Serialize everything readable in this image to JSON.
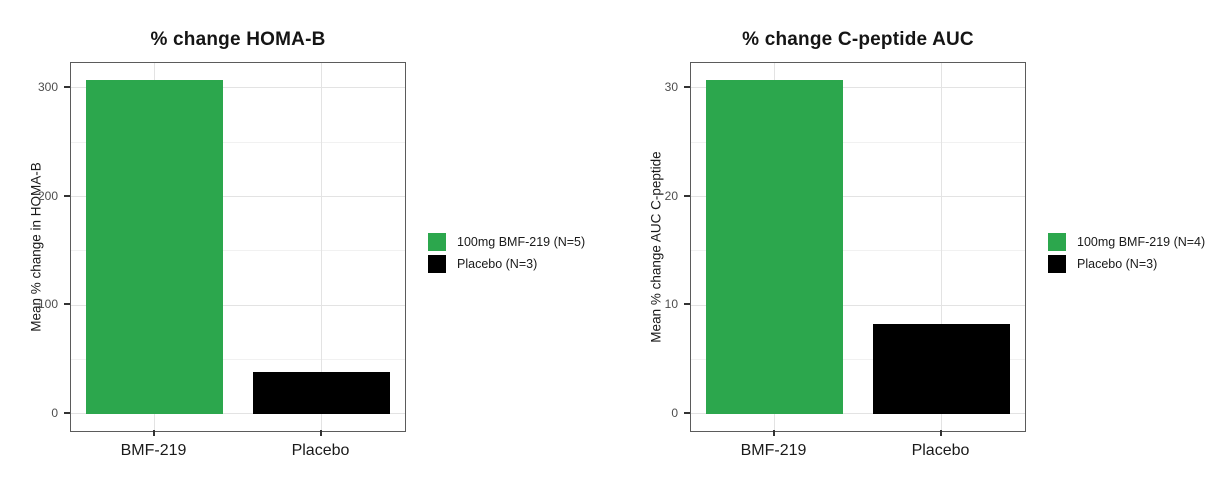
{
  "chart_data": [
    {
      "type": "bar",
      "title": "% change HOMA-B",
      "xlabel": "",
      "ylabel": "Mean % change in HOMA-B",
      "categories": [
        "BMF-219",
        "Placebo"
      ],
      "values": [
        307,
        38
      ],
      "bar_colors": [
        "#2ca74d",
        "#000000"
      ],
      "yticks": [
        0,
        100,
        200,
        300
      ],
      "ylim": [
        -16,
        323
      ],
      "grid": "on",
      "legend_position": "right",
      "legend": [
        {
          "label": "100mg BMF-219 (N=5)",
          "color": "#2ca74d"
        },
        {
          "label": "Placebo (N=3)",
          "color": "#000000"
        }
      ]
    },
    {
      "type": "bar",
      "title": "% change C-peptide AUC",
      "xlabel": "",
      "ylabel": "Mean % change AUC C-peptide",
      "categories": [
        "BMF-219",
        "Placebo"
      ],
      "values": [
        30.7,
        8.3
      ],
      "bar_colors": [
        "#2ca74d",
        "#000000"
      ],
      "yticks": [
        0,
        10,
        20,
        30
      ],
      "ylim": [
        -1.6,
        32.3
      ],
      "grid": "on",
      "legend_position": "right",
      "legend": [
        {
          "label": "100mg BMF-219 (N=4)",
          "color": "#2ca74d"
        },
        {
          "label": "Placebo (N=3)",
          "color": "#000000"
        }
      ]
    }
  ],
  "style": {
    "accent_green": "#2ca74d",
    "bar_black": "#000000",
    "panel_border": "#5b5b5b",
    "grid_major": "#e3e3e3",
    "grid_minor": "#f1f1f1",
    "tick_text": "#4d4d4d"
  }
}
